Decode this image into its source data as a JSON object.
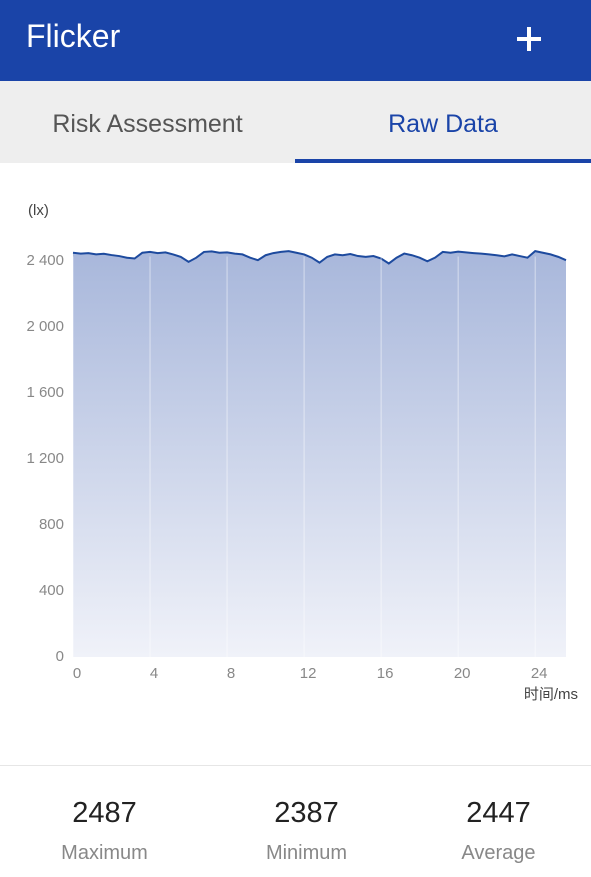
{
  "header": {
    "title": "Flicker"
  },
  "tabs": [
    "Risk Assessment",
    "Raw Data"
  ],
  "chart_data": {
    "type": "area",
    "y_unit": "(lx)",
    "x_label": "时间/ms",
    "x": [
      0,
      0.4,
      0.8,
      1.2,
      1.6,
      2.0,
      2.4,
      2.8,
      3.2,
      3.6,
      4.0,
      4.4,
      4.8,
      5.2,
      5.6,
      6.0,
      6.4,
      6.8,
      7.2,
      7.6,
      8.0,
      8.4,
      8.8,
      9.2,
      9.6,
      10.0,
      10.4,
      10.8,
      11.2,
      11.6,
      12.0,
      12.4,
      12.8,
      13.2,
      13.6,
      14.0,
      14.4,
      14.8,
      15.2,
      15.6,
      16.0,
      16.4,
      16.8,
      17.2,
      17.6,
      18.0,
      18.4,
      18.8,
      19.2,
      19.6,
      20.0,
      20.4,
      20.8,
      21.2,
      21.6,
      22.0,
      22.4,
      22.8,
      23.2,
      23.6,
      24.0,
      24.4,
      24.8,
      25.2,
      25.6
    ],
    "series": [
      {
        "color": "#1d4a9e",
        "fill_top": "#a8b7db",
        "fill_bottom": "#f0f2f9",
        "values": [
          2450,
          2445,
          2448,
          2440,
          2444,
          2436,
          2430,
          2420,
          2415,
          2450,
          2455,
          2448,
          2452,
          2440,
          2425,
          2395,
          2420,
          2455,
          2458,
          2450,
          2452,
          2445,
          2440,
          2420,
          2405,
          2435,
          2448,
          2455,
          2460,
          2450,
          2440,
          2420,
          2390,
          2425,
          2440,
          2435,
          2442,
          2430,
          2425,
          2430,
          2415,
          2385,
          2420,
          2445,
          2435,
          2420,
          2398,
          2420,
          2455,
          2450,
          2457,
          2452,
          2448,
          2445,
          2440,
          2435,
          2428,
          2440,
          2430,
          2420,
          2460,
          2450,
          2440,
          2425,
          2405
        ]
      }
    ],
    "xlim": [
      0,
      25.6
    ],
    "ylim": [
      0,
      2500
    ],
    "xticks": [
      0,
      4,
      8,
      12,
      16,
      20,
      24
    ],
    "yticks": [
      0,
      400,
      800,
      {
        "value": 1200,
        "label": "1 200"
      },
      {
        "value": 1600,
        "label": "1 600"
      },
      {
        "value": 2000,
        "label": "2 000"
      },
      {
        "value": 2400,
        "label": "2 400"
      }
    ],
    "grid": true
  },
  "stats": [
    {
      "value": "2487",
      "label": "Maximum"
    },
    {
      "value": "2387",
      "label": "Minimum"
    },
    {
      "value": "2447",
      "label": "Average"
    }
  ]
}
